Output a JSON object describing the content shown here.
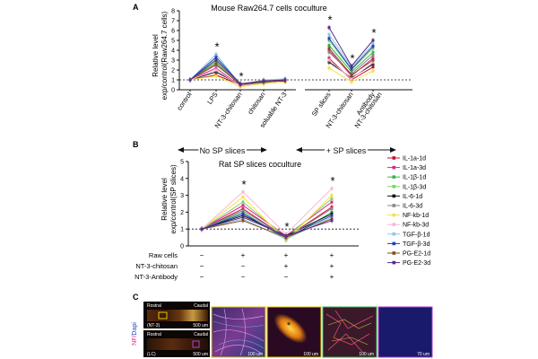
{
  "chart_data": [
    {
      "panel": "A",
      "type": "line",
      "title": "Mouse Raw264.7 cells coculture",
      "ylabel_line1": "Relative level",
      "ylabel_line2": "exp/control(Raw264.7 cells)",
      "ylim": [
        0,
        8
      ],
      "yticks": [
        0,
        1,
        2,
        3,
        4,
        5,
        6,
        7,
        8
      ],
      "groups": [
        {
          "categories": [
            "control",
            "LPS",
            "NT-3-chitosan",
            "chitosan",
            "soluable NT-3"
          ],
          "star": [
            false,
            true,
            true,
            false,
            false
          ]
        },
        {
          "categories": [
            "SP slices",
            "NT-3-chitosan",
            "Antibody"
          ],
          "extra_label": "NT-3-chitosan",
          "star": [
            true,
            true,
            true
          ]
        }
      ],
      "series": [
        {
          "name": "IL-1a-1d",
          "color": "#c8102e",
          "values": [
            1,
            1.5,
            0.5,
            0.9,
            1.0,
            3.2,
            1.0,
            2.3
          ]
        },
        {
          "name": "IL-1a-3d",
          "color": "#e0218a",
          "values": [
            1,
            2.2,
            0.4,
            0.8,
            0.9,
            4.0,
            1.4,
            3.2
          ]
        },
        {
          "name": "IL-1β-1d",
          "color": "#3cb44b",
          "values": [
            1,
            2.8,
            0.5,
            0.7,
            1.0,
            4.5,
            1.8,
            3.8
          ]
        },
        {
          "name": "IL-1β-3d",
          "color": "#7fd36b",
          "values": [
            1,
            3.1,
            0.6,
            0.9,
            1.1,
            5.0,
            2.0,
            4.2
          ]
        },
        {
          "name": "IL-6-1d",
          "color": "#111111",
          "values": [
            1,
            1.8,
            0.5,
            0.8,
            0.9,
            2.8,
            1.2,
            2.6
          ]
        },
        {
          "name": "IL-6-3d",
          "color": "#888888",
          "values": [
            1,
            2.5,
            0.6,
            0.7,
            1.0,
            3.8,
            1.6,
            3.5
          ]
        },
        {
          "name": "NF-kb-1d",
          "color": "#f2e14a",
          "values": [
            1,
            1.4,
            0.3,
            0.6,
            0.8,
            2.2,
            0.8,
            1.9
          ]
        },
        {
          "name": "NF-kb-3d",
          "color": "#f5b8d8",
          "values": [
            1,
            2.0,
            0.4,
            0.9,
            1.0,
            3.0,
            1.1,
            2.8
          ]
        },
        {
          "name": "TGF-β-1d",
          "color": "#8ecae6",
          "values": [
            1,
            3.6,
            0.5,
            1.0,
            1.1,
            5.6,
            2.3,
            4.6
          ]
        },
        {
          "name": "TGF-β-3d",
          "color": "#1f3fbf",
          "values": [
            1,
            3.3,
            0.6,
            0.8,
            1.0,
            5.2,
            2.1,
            4.4
          ]
        },
        {
          "name": "PG-E2-1d",
          "color": "#8b4a1c",
          "values": [
            1,
            2.6,
            0.5,
            0.8,
            0.9,
            4.2,
            1.5,
            3.0
          ]
        },
        {
          "name": "PG-E2-3d",
          "color": "#5b2a86",
          "values": [
            1,
            3.0,
            0.6,
            0.9,
            1.0,
            6.3,
            2.4,
            5.0
          ]
        }
      ]
    },
    {
      "panel": "B",
      "type": "line",
      "title": "Rat SP slices coculture",
      "ylabel_line1": "Relative level",
      "ylabel_line2": "exp/control(SP slices)",
      "ylim": [
        0,
        5
      ],
      "yticks": [
        0,
        1,
        2,
        3,
        4,
        5
      ],
      "no_sp_label": "No SP slices",
      "plus_sp_label": "+ SP slices",
      "star": [
        false,
        true,
        true,
        true
      ],
      "conditions": {
        "rows": [
          {
            "label": "Raw cells",
            "values": [
              "−",
              "+",
              "+",
              "+"
            ]
          },
          {
            "label": "NT-3-chitosan",
            "values": [
              "−",
              "−",
              "+",
              "+"
            ]
          },
          {
            "label": "NT-3-Antibody",
            "values": [
              "−",
              "−",
              "−",
              "+"
            ]
          }
        ]
      },
      "series": [
        {
          "name": "IL-1a-1d",
          "color": "#c8102e",
          "values": [
            1,
            2.2,
            0.5,
            2.3
          ]
        },
        {
          "name": "IL-1a-3d",
          "color": "#e0218a",
          "values": [
            1,
            2.4,
            0.6,
            2.6
          ]
        },
        {
          "name": "IL-1β-1d",
          "color": "#3cb44b",
          "values": [
            1,
            2.0,
            0.4,
            2.0
          ]
        },
        {
          "name": "IL-1β-3d",
          "color": "#7fd36b",
          "values": [
            1,
            2.6,
            0.5,
            2.8
          ]
        },
        {
          "name": "IL-6-1d",
          "color": "#111111",
          "values": [
            1,
            1.8,
            0.6,
            1.9
          ]
        },
        {
          "name": "IL-6-3d",
          "color": "#888888",
          "values": [
            1,
            2.1,
            0.5,
            2.2
          ]
        },
        {
          "name": "NF-kb-1d",
          "color": "#f2e14a",
          "values": [
            1,
            2.9,
            0.3,
            3.0
          ]
        },
        {
          "name": "NF-kb-3d",
          "color": "#f5b8d8",
          "values": [
            1,
            3.2,
            0.7,
            3.4
          ]
        },
        {
          "name": "TGF-β-1d",
          "color": "#8ecae6",
          "values": [
            1,
            1.6,
            0.4,
            1.7
          ]
        },
        {
          "name": "TGF-β-3d",
          "color": "#1f3fbf",
          "values": [
            1,
            1.9,
            0.5,
            1.8
          ]
        },
        {
          "name": "PG-E2-1d",
          "color": "#8b4a1c",
          "values": [
            1,
            1.5,
            0.5,
            1.6
          ]
        },
        {
          "name": "PG-E2-3d",
          "color": "#5b2a86",
          "values": [
            1,
            1.7,
            0.6,
            1.5
          ]
        }
      ]
    }
  ],
  "panel_c": {
    "label": "C",
    "side_label_nf": "NF/",
    "side_label_dapi": "Dapi",
    "top_image": {
      "left_label": "Rostral",
      "right_label": "Caudal",
      "tag": "(NT-3)",
      "scale": "500 um"
    },
    "bottom_image": {
      "left_label": "Rostral",
      "right_label": "Caudal",
      "tag": "(LC)",
      "scale": "500 um"
    },
    "panels": [
      {
        "scale": "100 um",
        "border": "#e8c800"
      },
      {
        "scale": "100 um",
        "border": "#e8c800"
      },
      {
        "scale": "100 um",
        "border": "#3cb44b"
      },
      {
        "scale": "70 um",
        "border": "#b040d0"
      }
    ]
  }
}
